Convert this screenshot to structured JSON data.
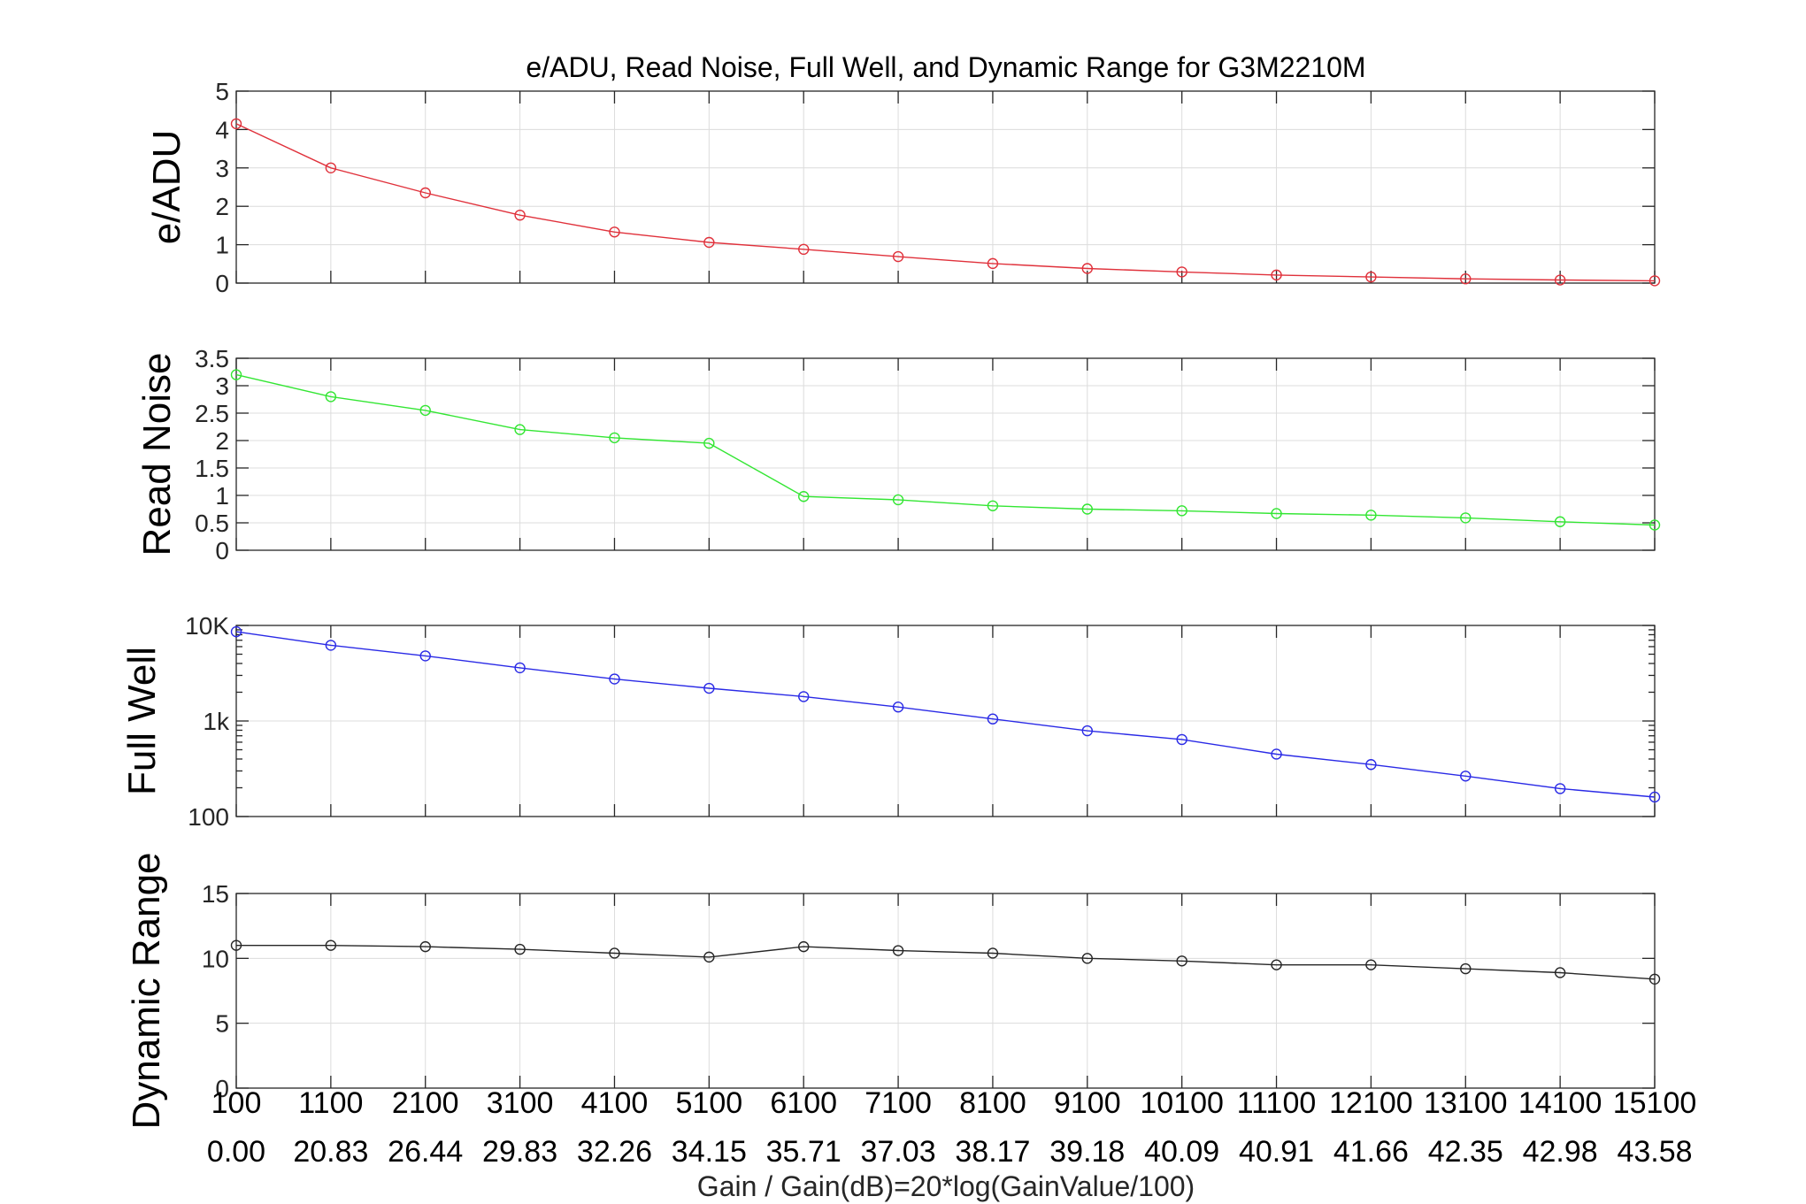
{
  "chart_data": {
    "type": "line",
    "title": "e/ADU, Read Noise, Full Well, and Dynamic Range for G3M2210M",
    "xlabel": "Gain / Gain(dB)=20*log(GainValue/100)",
    "x": [
      100,
      1100,
      2100,
      3100,
      4100,
      5100,
      6100,
      7100,
      8100,
      9100,
      10100,
      11100,
      12100,
      13100,
      14100,
      15100
    ],
    "x_tick_labels": [
      "100",
      "1100",
      "2100",
      "3100",
      "4100",
      "5100",
      "6100",
      "7100",
      "8100",
      "9100",
      "10100",
      "11100",
      "12100",
      "13100",
      "14100",
      "15100"
    ],
    "x_tick_labels_db": [
      "0.00",
      "20.83",
      "26.44",
      "29.83",
      "32.26",
      "34.15",
      "35.71",
      "37.03",
      "38.17",
      "39.18",
      "40.09",
      "40.91",
      "41.66",
      "42.35",
      "42.98",
      "43.58"
    ],
    "xlim": [
      100,
      15100
    ],
    "grid": true,
    "panels": [
      {
        "ylabel": "e/ADU",
        "ylim": [
          0,
          5
        ],
        "yscale": "linear",
        "y_ticks": [
          0,
          1,
          2,
          3,
          4,
          5
        ],
        "y_tick_labels": [
          "0",
          "1",
          "2",
          "3",
          "4",
          "5"
        ],
        "color": "#e0313b",
        "marker": "circle",
        "values": [
          4.15,
          3.0,
          2.35,
          1.77,
          1.33,
          1.06,
          0.88,
          0.69,
          0.51,
          0.38,
          0.29,
          0.21,
          0.16,
          0.11,
          0.08,
          0.06
        ]
      },
      {
        "ylabel": "Read Noise",
        "ylim": [
          0,
          3.5
        ],
        "yscale": "linear",
        "y_ticks": [
          0,
          0.5,
          1,
          1.5,
          2,
          2.5,
          3,
          3.5
        ],
        "y_tick_labels": [
          "0",
          "0.5",
          "1",
          "1.5",
          "2",
          "2.5",
          "3",
          "3.5"
        ],
        "color": "#33e633",
        "marker": "circle",
        "values": [
          3.2,
          2.8,
          2.55,
          2.2,
          2.05,
          1.95,
          0.98,
          0.92,
          0.81,
          0.75,
          0.72,
          0.67,
          0.64,
          0.59,
          0.52,
          0.46
        ]
      },
      {
        "ylabel": "Full Well",
        "ylim": [
          100,
          10000
        ],
        "yscale": "log",
        "y_ticks": [
          100,
          1000,
          10000
        ],
        "y_tick_labels": [
          "100",
          "1k",
          "10K"
        ],
        "color": "#2a2ae6",
        "marker": "circle",
        "values": [
          8600,
          6200,
          4800,
          3600,
          2750,
          2200,
          1800,
          1400,
          1050,
          790,
          640,
          450,
          350,
          265,
          196,
          160
        ]
      },
      {
        "ylabel": "Dynamic Range",
        "ylim": [
          0,
          15
        ],
        "yscale": "linear",
        "y_ticks": [
          0,
          5,
          10,
          15
        ],
        "y_tick_labels": [
          "0",
          "5",
          "10",
          "15"
        ],
        "color": "#262626",
        "marker": "circle",
        "values": [
          11.0,
          11.0,
          10.9,
          10.7,
          10.4,
          10.1,
          10.9,
          10.6,
          10.4,
          10.0,
          9.8,
          9.5,
          9.5,
          9.2,
          8.9,
          8.4
        ]
      }
    ]
  }
}
